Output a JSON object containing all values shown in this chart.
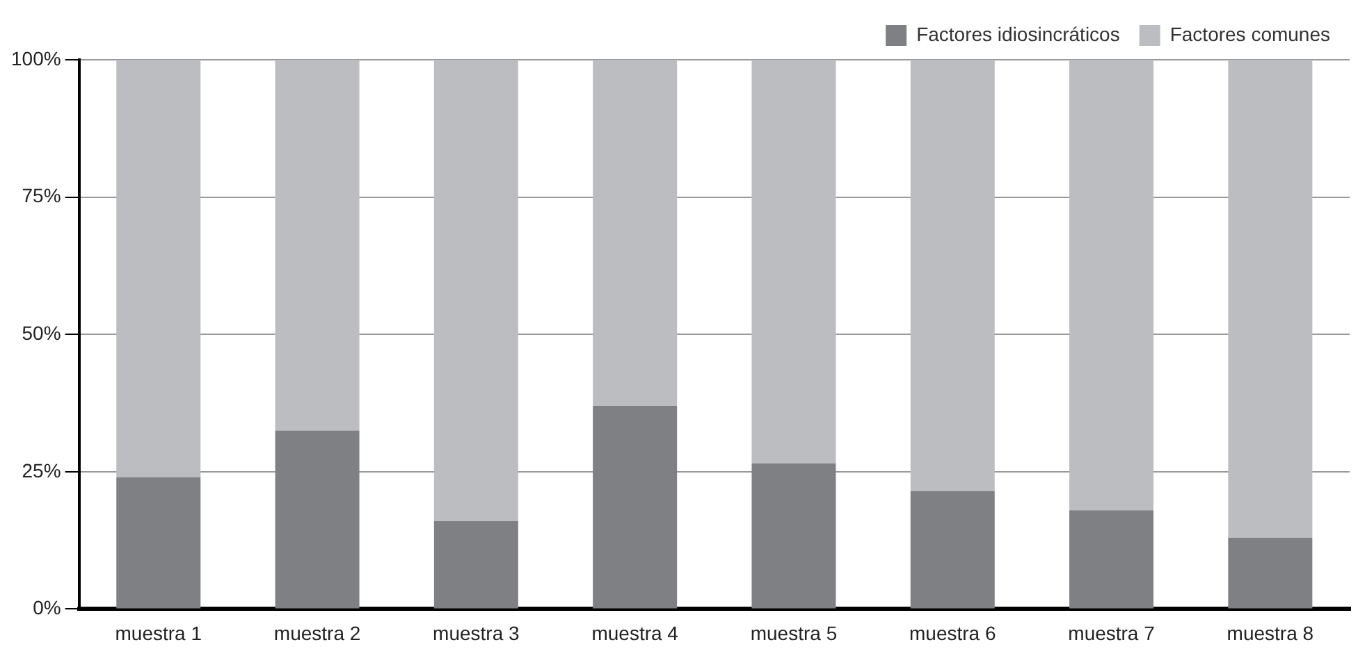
{
  "chart_data": {
    "type": "bar",
    "stacked": true,
    "categories": [
      "muestra 1",
      "muestra 2",
      "muestra 3",
      "muestra 4",
      "muestra 5",
      "muestra 6",
      "muestra 7",
      "muestra 8"
    ],
    "series": [
      {
        "name": "Factores idiosincráticos",
        "color": "#7f8083",
        "values": [
          24,
          32.5,
          16,
          37,
          26.5,
          21.5,
          18,
          13
        ]
      },
      {
        "name": "Factores comunes",
        "color": "#bcbdc0",
        "values": [
          76,
          67.5,
          84,
          63,
          73.5,
          78.5,
          82,
          87
        ]
      }
    ],
    "ylim": [
      0,
      100
    ],
    "yticks": [
      {
        "value": 0,
        "label": "0%"
      },
      {
        "value": 25,
        "label": "25%"
      },
      {
        "value": 50,
        "label": "50%"
      },
      {
        "value": 75,
        "label": "75%"
      },
      {
        "value": 100,
        "label": "100%"
      }
    ],
    "grid": "y",
    "legend": "top right"
  }
}
